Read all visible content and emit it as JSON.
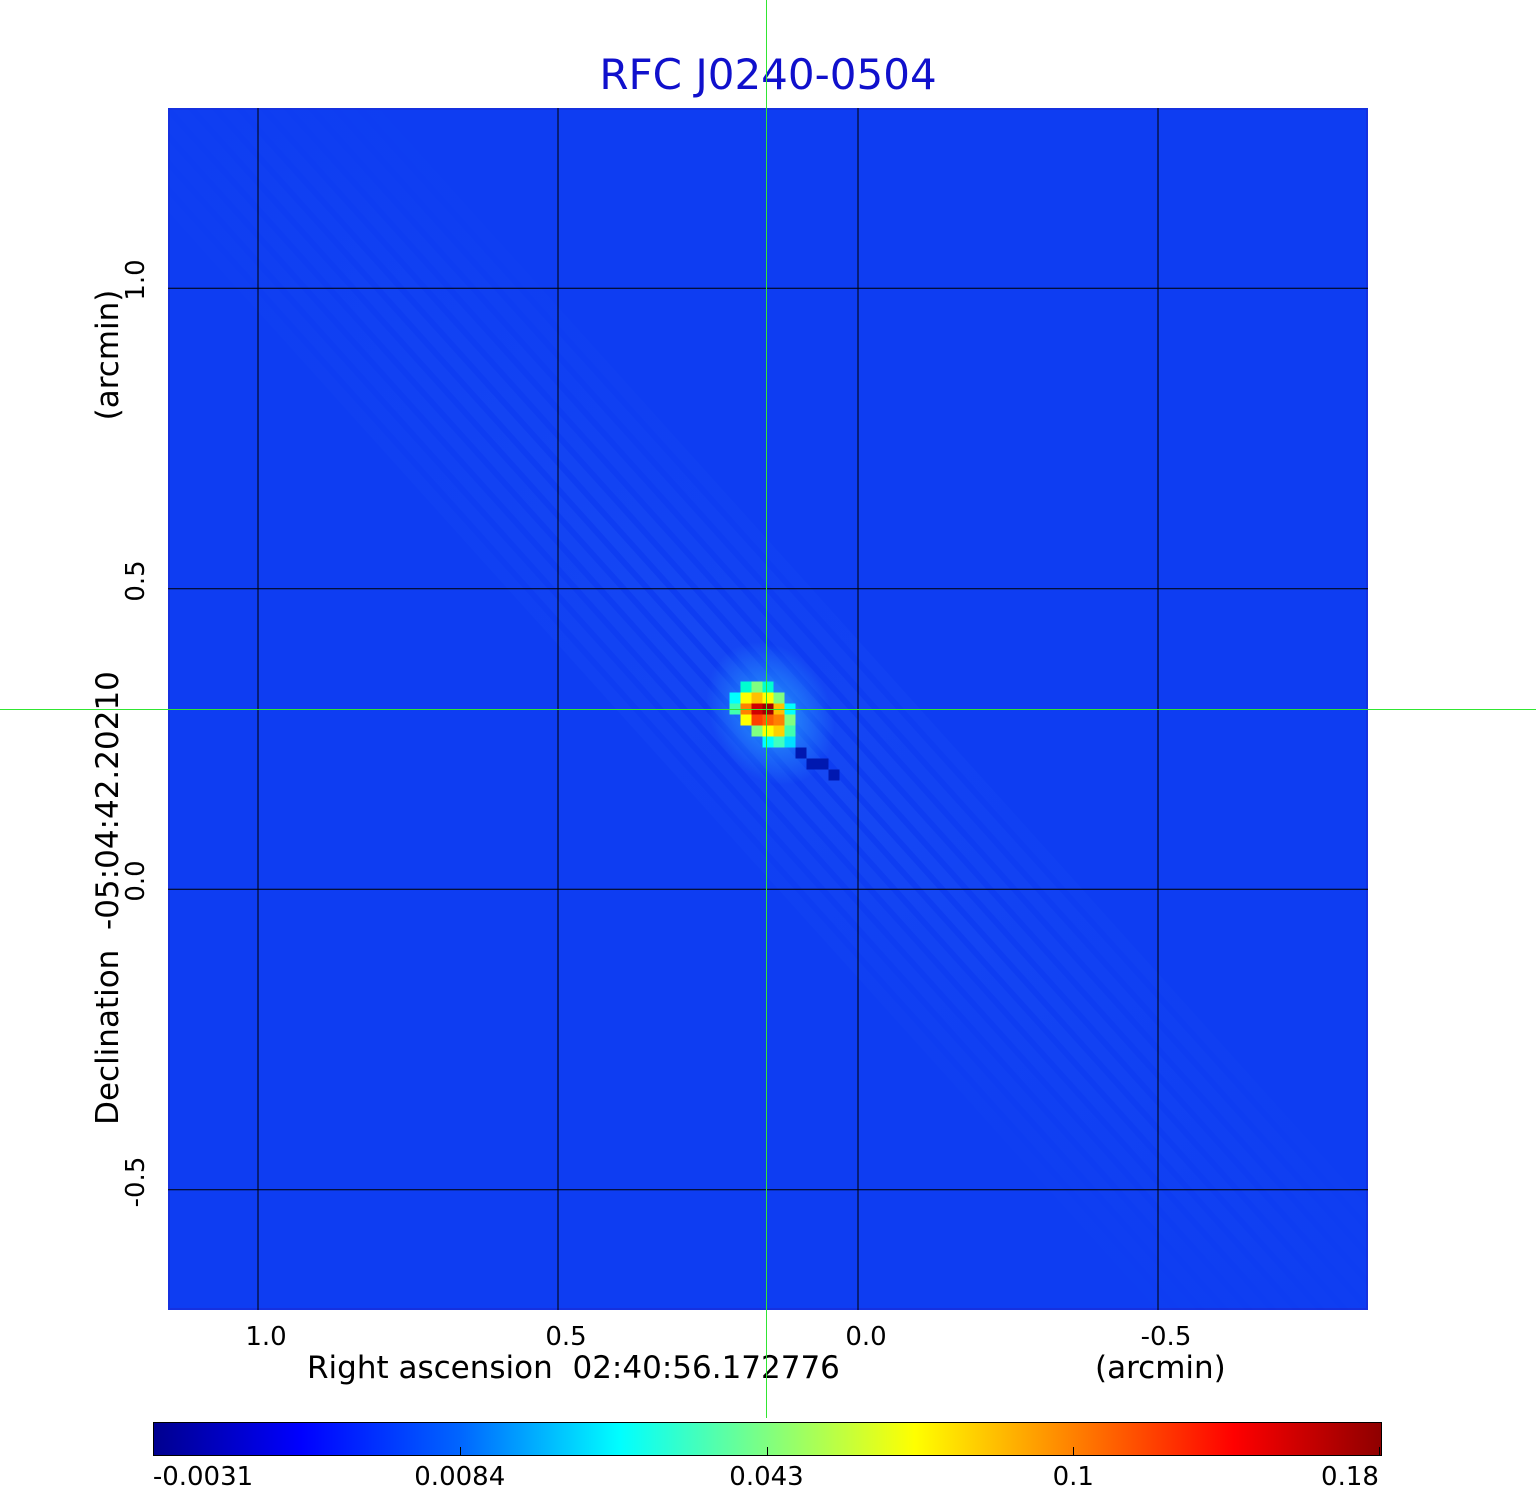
{
  "chart_data": {
    "type": "heatmap",
    "title": "RFC J0240-0504",
    "xlabel": "Right ascension  02:40:56.172776",
    "x_unit": "(arcmin)",
    "ylabel": "Declination  -05:04:42.20210",
    "y_unit": "(arcmin)",
    "xlim": [
      1.15,
      -0.85
    ],
    "ylim": [
      -0.7,
      1.3
    ],
    "x_ticks": [
      "1.0",
      "0.5",
      "0.0",
      "-0.5"
    ],
    "y_ticks": [
      "1.0",
      "0.5",
      "0.0",
      "-0.5"
    ],
    "x_tick_values": [
      1.0,
      0.5,
      0.0,
      -0.5
    ],
    "y_tick_values": [
      1.0,
      0.5,
      0.0,
      -0.5
    ],
    "grid": true,
    "colormap": "jet",
    "background_color": "#0e3df2",
    "crosshair": {
      "x": 0.145,
      "y": 0.297,
      "color": "#31e631"
    },
    "peak": {
      "x": 0.15,
      "y": 0.3,
      "value": 0.18
    },
    "colorbar": {
      "ticks": [
        "-0.0031",
        "0.0084",
        "0.043",
        "0.1",
        "0.18"
      ],
      "tick_fractions": [
        0.0,
        0.25,
        0.5,
        0.75,
        1.0
      ]
    }
  }
}
